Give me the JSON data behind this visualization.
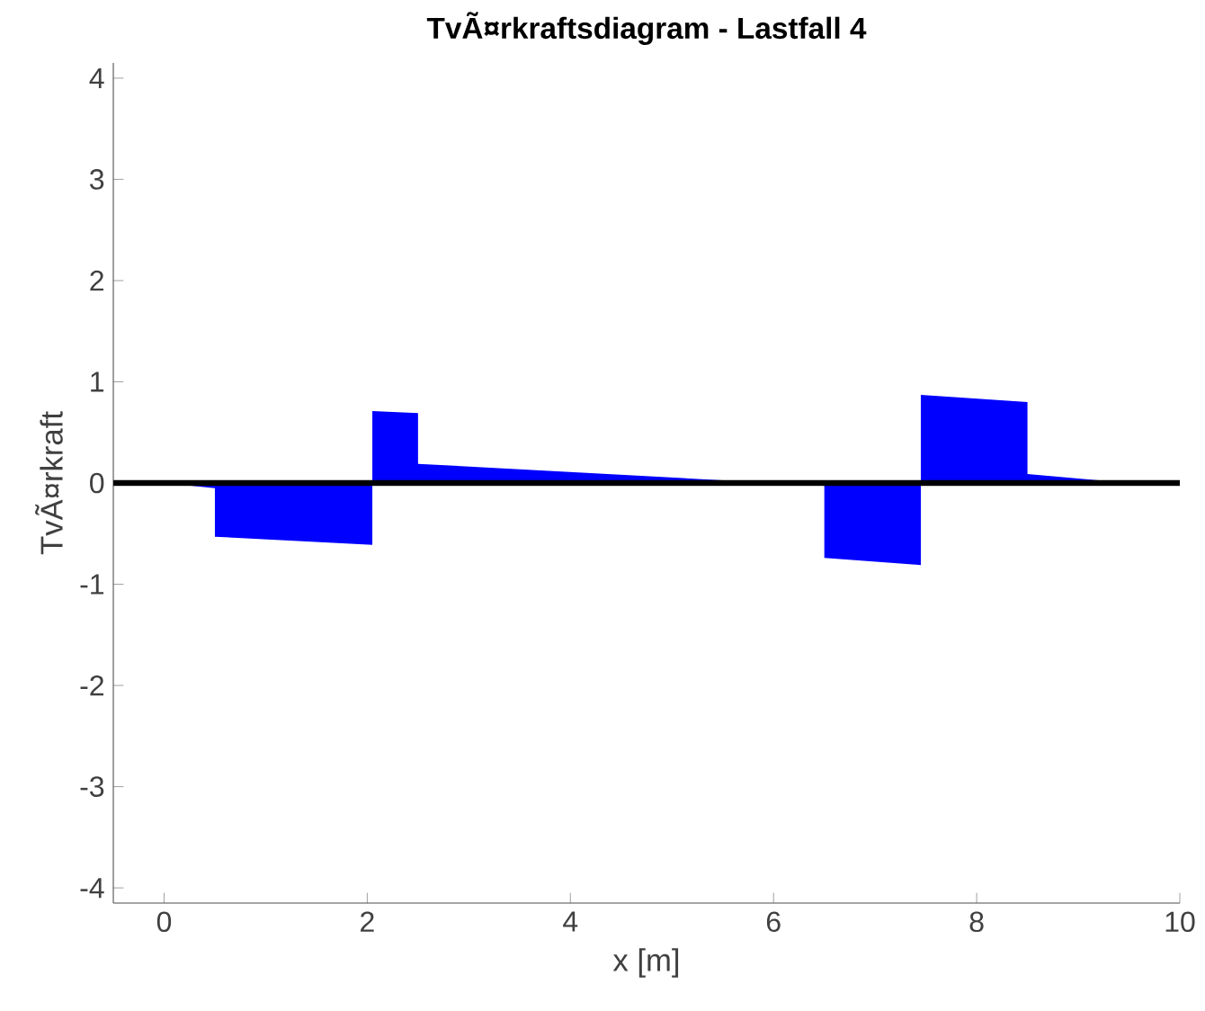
{
  "chart_data": {
    "type": "area",
    "title": "TvÃ¤rkraftsdiagram - Lastfall 4",
    "xlabel": "x [m]",
    "ylabel": "TvÃ¤rkraft",
    "x": [
      0,
      0.5,
      0.5,
      2.05,
      2.05,
      2.5,
      2.5,
      6,
      6.5,
      6.5,
      7.45,
      7.45,
      8.5,
      8.5,
      9.5,
      10
    ],
    "series": [
      {
        "color": "#0000ff",
        "values": [
          0,
          -0.05,
          -0.53,
          -0.61,
          0.71,
          0.69,
          0.19,
          0,
          0,
          -0.74,
          -0.81,
          0.87,
          0.8,
          0.09,
          0,
          0
        ]
      }
    ],
    "xlim": [
      -0.5,
      10
    ],
    "ylim": [
      -4.15,
      4.15
    ],
    "xticks": [
      0,
      2,
      4,
      6,
      8,
      10
    ],
    "yticks": [
      -4,
      -3,
      -2,
      -1,
      0,
      1,
      2,
      3,
      4
    ],
    "ref_lines": [
      {
        "axis": "y",
        "value": 0,
        "color": "#000000",
        "line_style": "solid"
      }
    ]
  }
}
